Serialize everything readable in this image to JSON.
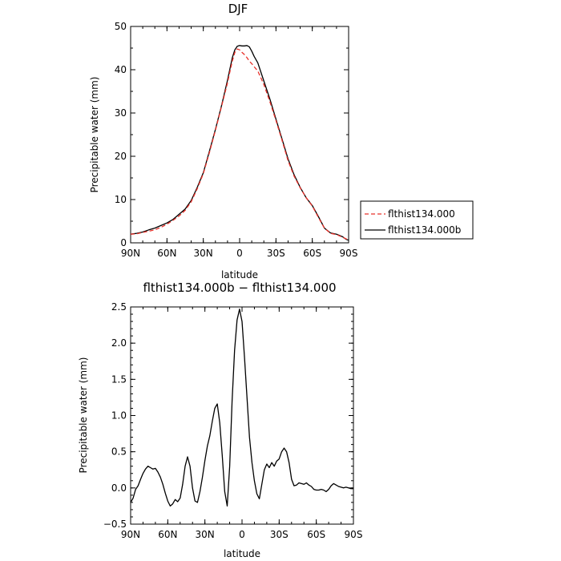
{
  "chart_data": [
    {
      "type": "line",
      "title": "DJF",
      "xlabel": "latitude",
      "ylabel": "Precipitable water (mm)",
      "xlim": [
        90,
        -90
      ],
      "ylim": [
        0,
        50
      ],
      "x_ticks": [
        90,
        60,
        30,
        0,
        -30,
        -60,
        -90
      ],
      "x_tick_labels": [
        "90N",
        "60N",
        "30N",
        "0",
        "30S",
        "60S",
        "90S"
      ],
      "y_ticks": [
        0,
        10,
        20,
        30,
        40,
        50
      ],
      "legend_position": "right",
      "series": [
        {
          "name": "flthist134.000",
          "color": "#e8312a",
          "style": "dashed",
          "x": [
            90,
            85,
            80,
            75,
            70,
            65,
            60,
            55,
            50,
            45,
            40,
            35,
            30,
            25,
            20,
            15,
            10,
            8,
            6,
            4,
            2,
            0,
            -2,
            -4,
            -6,
            -8,
            -10,
            -12,
            -15,
            -20,
            -25,
            -30,
            -35,
            -40,
            -45,
            -50,
            -55,
            -60,
            -65,
            -70,
            -75,
            -80,
            -85,
            -88,
            -90
          ],
          "y": [
            2.0,
            2.1,
            2.4,
            2.7,
            3.0,
            3.6,
            4.3,
            5.2,
            6.2,
            7.5,
            9.5,
            12.5,
            16.0,
            20.8,
            26.0,
            31.4,
            37.0,
            39.6,
            42.0,
            44.0,
            44.8,
            44.6,
            44.0,
            43.5,
            42.8,
            42.0,
            41.4,
            40.7,
            39.7,
            36.6,
            32.6,
            28.3,
            23.7,
            19.0,
            15.4,
            12.7,
            10.4,
            8.5,
            5.9,
            3.4,
            2.2,
            1.9,
            1.3,
            0.9,
            0.7
          ]
        },
        {
          "name": "flthist134.000b",
          "color": "#000000",
          "style": "solid",
          "x": [
            90,
            85,
            80,
            75,
            70,
            65,
            60,
            55,
            50,
            45,
            40,
            35,
            30,
            25,
            20,
            15,
            10,
            8,
            6,
            4,
            2,
            0,
            -2,
            -4,
            -6,
            -8,
            -10,
            -12,
            -15,
            -20,
            -25,
            -30,
            -35,
            -40,
            -45,
            -50,
            -55,
            -60,
            -65,
            -70,
            -75,
            -80,
            -85,
            -88,
            -90
          ],
          "y": [
            2.0,
            2.2,
            2.5,
            3.0,
            3.4,
            4.0,
            4.6,
            5.4,
            6.6,
            7.8,
            9.8,
            12.8,
            16.2,
            21.1,
            26.2,
            31.6,
            37.6,
            40.2,
            42.8,
            44.6,
            45.4,
            45.6,
            45.5,
            45.5,
            45.6,
            45.3,
            44.3,
            43.1,
            41.6,
            37.4,
            33.2,
            28.6,
            24.0,
            19.4,
            15.7,
            12.8,
            10.4,
            8.6,
            6.1,
            3.4,
            2.3,
            2.0,
            1.4,
            0.8,
            0.6
          ]
        }
      ]
    },
    {
      "type": "line",
      "title": "flthist134.000b − flthist134.000",
      "xlabel": "latitude",
      "ylabel": "Precipitable water (mm)",
      "xlim": [
        90,
        -90
      ],
      "ylim": [
        -0.5,
        2.5
      ],
      "x_ticks": [
        90,
        60,
        30,
        0,
        -30,
        -60,
        -90
      ],
      "x_tick_labels": [
        "90N",
        "60N",
        "30N",
        "0",
        "30S",
        "60S",
        "90S"
      ],
      "y_ticks": [
        -0.5,
        0.0,
        0.5,
        1.0,
        1.5,
        2.0,
        2.5
      ],
      "y_tick_labels": [
        "−0.5",
        "0.0",
        "0.5",
        "1.0",
        "1.5",
        "2.0",
        "2.5"
      ],
      "series": [
        {
          "color": "#000000",
          "style": "solid",
          "x": [
            90,
            88,
            86,
            84,
            82,
            80,
            78,
            76,
            74,
            72,
            70,
            68,
            66,
            64,
            62,
            60,
            58,
            56,
            54,
            52,
            50,
            48,
            46,
            44,
            42,
            40,
            38,
            36,
            34,
            32,
            30,
            28,
            26,
            24,
            22,
            20,
            18,
            16,
            14,
            12,
            10,
            8,
            6,
            4,
            2,
            0,
            -2,
            -4,
            -6,
            -8,
            -10,
            -12,
            -14,
            -16,
            -18,
            -20,
            -22,
            -24,
            -26,
            -28,
            -30,
            -32,
            -34,
            -36,
            -38,
            -40,
            -42,
            -44,
            -46,
            -48,
            -50,
            -52,
            -54,
            -56,
            -58,
            -60,
            -62,
            -64,
            -66,
            -68,
            -70,
            -72,
            -74,
            -76,
            -78,
            -80,
            -82,
            -84,
            -86,
            -88,
            -90
          ],
          "y": [
            -0.2,
            -0.14,
            -0.02,
            0.03,
            0.12,
            0.2,
            0.26,
            0.3,
            0.28,
            0.26,
            0.27,
            0.22,
            0.15,
            0.05,
            -0.07,
            -0.18,
            -0.25,
            -0.22,
            -0.16,
            -0.19,
            -0.14,
            0.05,
            0.3,
            0.43,
            0.3,
            0.0,
            -0.18,
            -0.2,
            -0.05,
            0.15,
            0.38,
            0.58,
            0.72,
            0.92,
            1.1,
            1.16,
            0.9,
            0.45,
            -0.05,
            -0.25,
            0.3,
            1.2,
            1.9,
            2.32,
            2.47,
            2.3,
            1.8,
            1.25,
            0.7,
            0.35,
            0.1,
            -0.08,
            -0.15,
            0.05,
            0.25,
            0.33,
            0.28,
            0.35,
            0.3,
            0.37,
            0.4,
            0.5,
            0.55,
            0.5,
            0.35,
            0.12,
            0.03,
            0.04,
            0.07,
            0.06,
            0.05,
            0.07,
            0.04,
            0.02,
            -0.02,
            -0.03,
            -0.03,
            -0.02,
            -0.03,
            -0.05,
            -0.02,
            0.03,
            0.06,
            0.04,
            0.02,
            0.01,
            0.0,
            0.01,
            0.0,
            -0.01,
            -0.01
          ]
        }
      ]
    }
  ]
}
